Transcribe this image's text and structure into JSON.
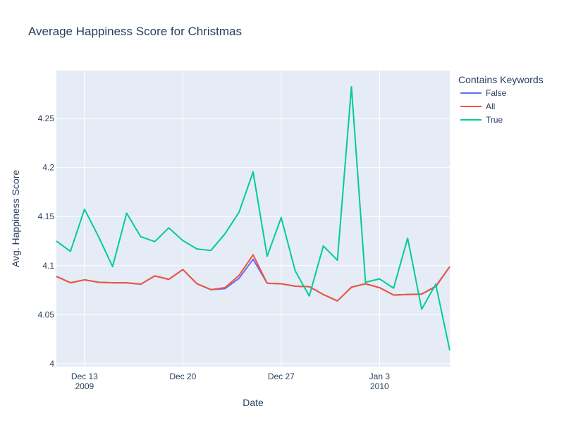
{
  "chart_data": {
    "type": "line",
    "title": "Average Happiness Score for Christmas",
    "xlabel": "Date",
    "ylabel": "Avg. Happiness Score",
    "x_start": "2009-12-11",
    "x_end": "2010-01-08",
    "xlim": [
      "2009-12-11",
      "2010-01-08"
    ],
    "ylim": [
      3.997,
      4.299
    ],
    "x_ticks": [
      {
        "date": "2009-12-13",
        "label": "Dec 13",
        "sublabel": "2009"
      },
      {
        "date": "2009-12-20",
        "label": "Dec 20",
        "sublabel": ""
      },
      {
        "date": "2009-12-27",
        "label": "Dec 27",
        "sublabel": ""
      },
      {
        "date": "2010-01-03",
        "label": "Jan 3",
        "sublabel": "2010"
      }
    ],
    "y_ticks": [
      {
        "value": 4.0,
        "label": "4"
      },
      {
        "value": 4.05,
        "label": "4.05"
      },
      {
        "value": 4.1,
        "label": "4.1"
      },
      {
        "value": 4.15,
        "label": "4.15"
      },
      {
        "value": 4.2,
        "label": "4.2"
      },
      {
        "value": 4.25,
        "label": "4.25"
      }
    ],
    "grid": true,
    "legend_title": "Contains Keywords",
    "legend_position": "top-right outside",
    "x": [
      "2009-12-11",
      "2009-12-12",
      "2009-12-13",
      "2009-12-14",
      "2009-12-15",
      "2009-12-16",
      "2009-12-17",
      "2009-12-18",
      "2009-12-19",
      "2009-12-20",
      "2009-12-21",
      "2009-12-22",
      "2009-12-23",
      "2009-12-24",
      "2009-12-25",
      "2009-12-26",
      "2009-12-27",
      "2009-12-28",
      "2009-12-29",
      "2009-12-30",
      "2009-12-31",
      "2010-01-01",
      "2010-01-02",
      "2010-01-03",
      "2010-01-04",
      "2010-01-05",
      "2010-01-06",
      "2010-01-07",
      "2010-01-08"
    ],
    "series": [
      {
        "name": "False",
        "color": "#636efa",
        "values": [
          4.089,
          4.0825,
          4.0855,
          4.083,
          4.0825,
          4.0825,
          4.081,
          4.0895,
          4.086,
          4.096,
          4.0815,
          4.0755,
          4.0765,
          4.087,
          4.1065,
          4.082,
          4.0815,
          4.079,
          4.0785,
          4.0705,
          4.064,
          4.078,
          4.0815,
          4.0775,
          4.07,
          4.0705,
          4.071,
          4.079,
          4.099
        ]
      },
      {
        "name": "All",
        "color": "#ef553b",
        "values": [
          4.089,
          4.0825,
          4.0855,
          4.083,
          4.0825,
          4.0825,
          4.081,
          4.0895,
          4.086,
          4.096,
          4.0815,
          4.0755,
          4.0775,
          4.09,
          4.111,
          4.082,
          4.0815,
          4.079,
          4.0785,
          4.0705,
          4.064,
          4.078,
          4.0815,
          4.0775,
          4.07,
          4.0705,
          4.071,
          4.0785,
          4.099
        ]
      },
      {
        "name": "True",
        "color": "#00cc96",
        "values": [
          4.125,
          4.1145,
          4.1575,
          4.1295,
          4.099,
          4.1535,
          4.1295,
          4.1245,
          4.1385,
          4.1255,
          4.117,
          4.1155,
          4.1325,
          4.1545,
          4.1955,
          4.1095,
          4.149,
          4.0945,
          4.069,
          4.12,
          4.1055,
          4.2825,
          4.083,
          4.0865,
          4.077,
          4.128,
          4.0555,
          4.081,
          4.0135
        ]
      }
    ]
  }
}
